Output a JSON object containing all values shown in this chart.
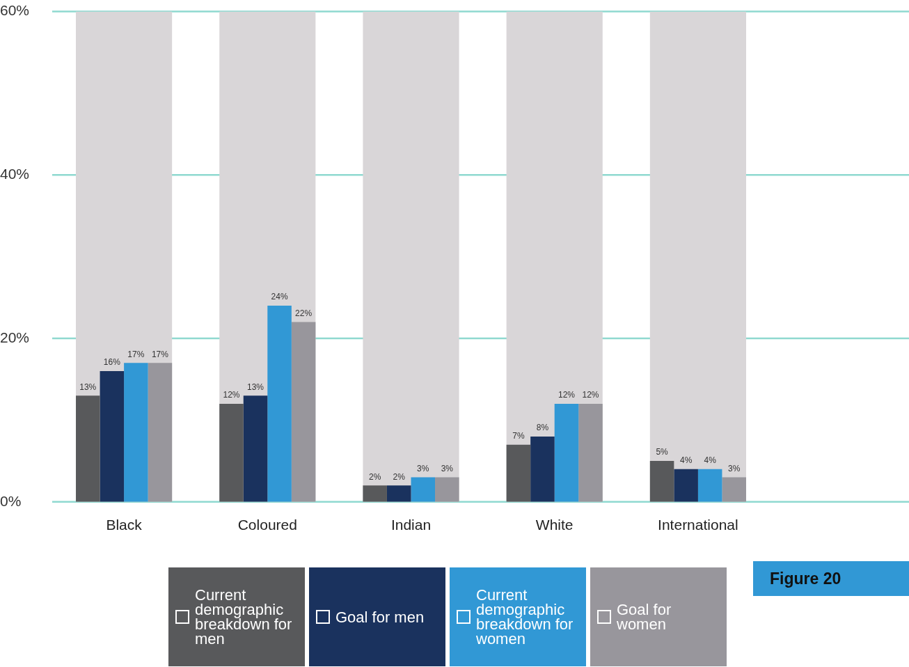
{
  "chart_data": {
    "type": "bar",
    "categories": [
      "Black",
      "Coloured",
      "Indian",
      "White",
      "International"
    ],
    "series": [
      {
        "name": "Current demographic breakdown for men",
        "color": "#58595b",
        "values": [
          13,
          12,
          2,
          7,
          5
        ],
        "value_labels": [
          "13%",
          "12%",
          "2%",
          "7%",
          "5%"
        ]
      },
      {
        "name": "Goal for men",
        "color": "#1a325e",
        "values": [
          16,
          13,
          2,
          8,
          4
        ],
        "value_labels": [
          "16%",
          "13%",
          "2%",
          "8%",
          "4%"
        ]
      },
      {
        "name": "Current demographic breakdown for women",
        "color": "#3198d5",
        "values": [
          17,
          24,
          3,
          12,
          4
        ],
        "value_labels": [
          "17%",
          "24%",
          "3%",
          "12%",
          "4%"
        ]
      },
      {
        "name": "Goal for women",
        "color": "#98969c",
        "values": [
          17,
          22,
          3,
          12,
          3
        ],
        "value_labels": [
          "17%",
          "22%",
          "3%",
          "12%",
          "3%"
        ]
      },
      {
        "color": "#d9d6d8",
        "values": [
          60,
          60,
          60,
          60,
          60
        ]
      }
    ],
    "ylim": [
      0,
      60
    ],
    "yticks": [
      {
        "value": 0,
        "label": "0%"
      },
      {
        "value": 20,
        "label": "20%"
      },
      {
        "value": 40,
        "label": "40%"
      },
      {
        "value": 60,
        "label": "60%"
      }
    ],
    "grid": "y",
    "legend": "bottom",
    "annotations": [
      "Figure 20"
    ]
  }
}
